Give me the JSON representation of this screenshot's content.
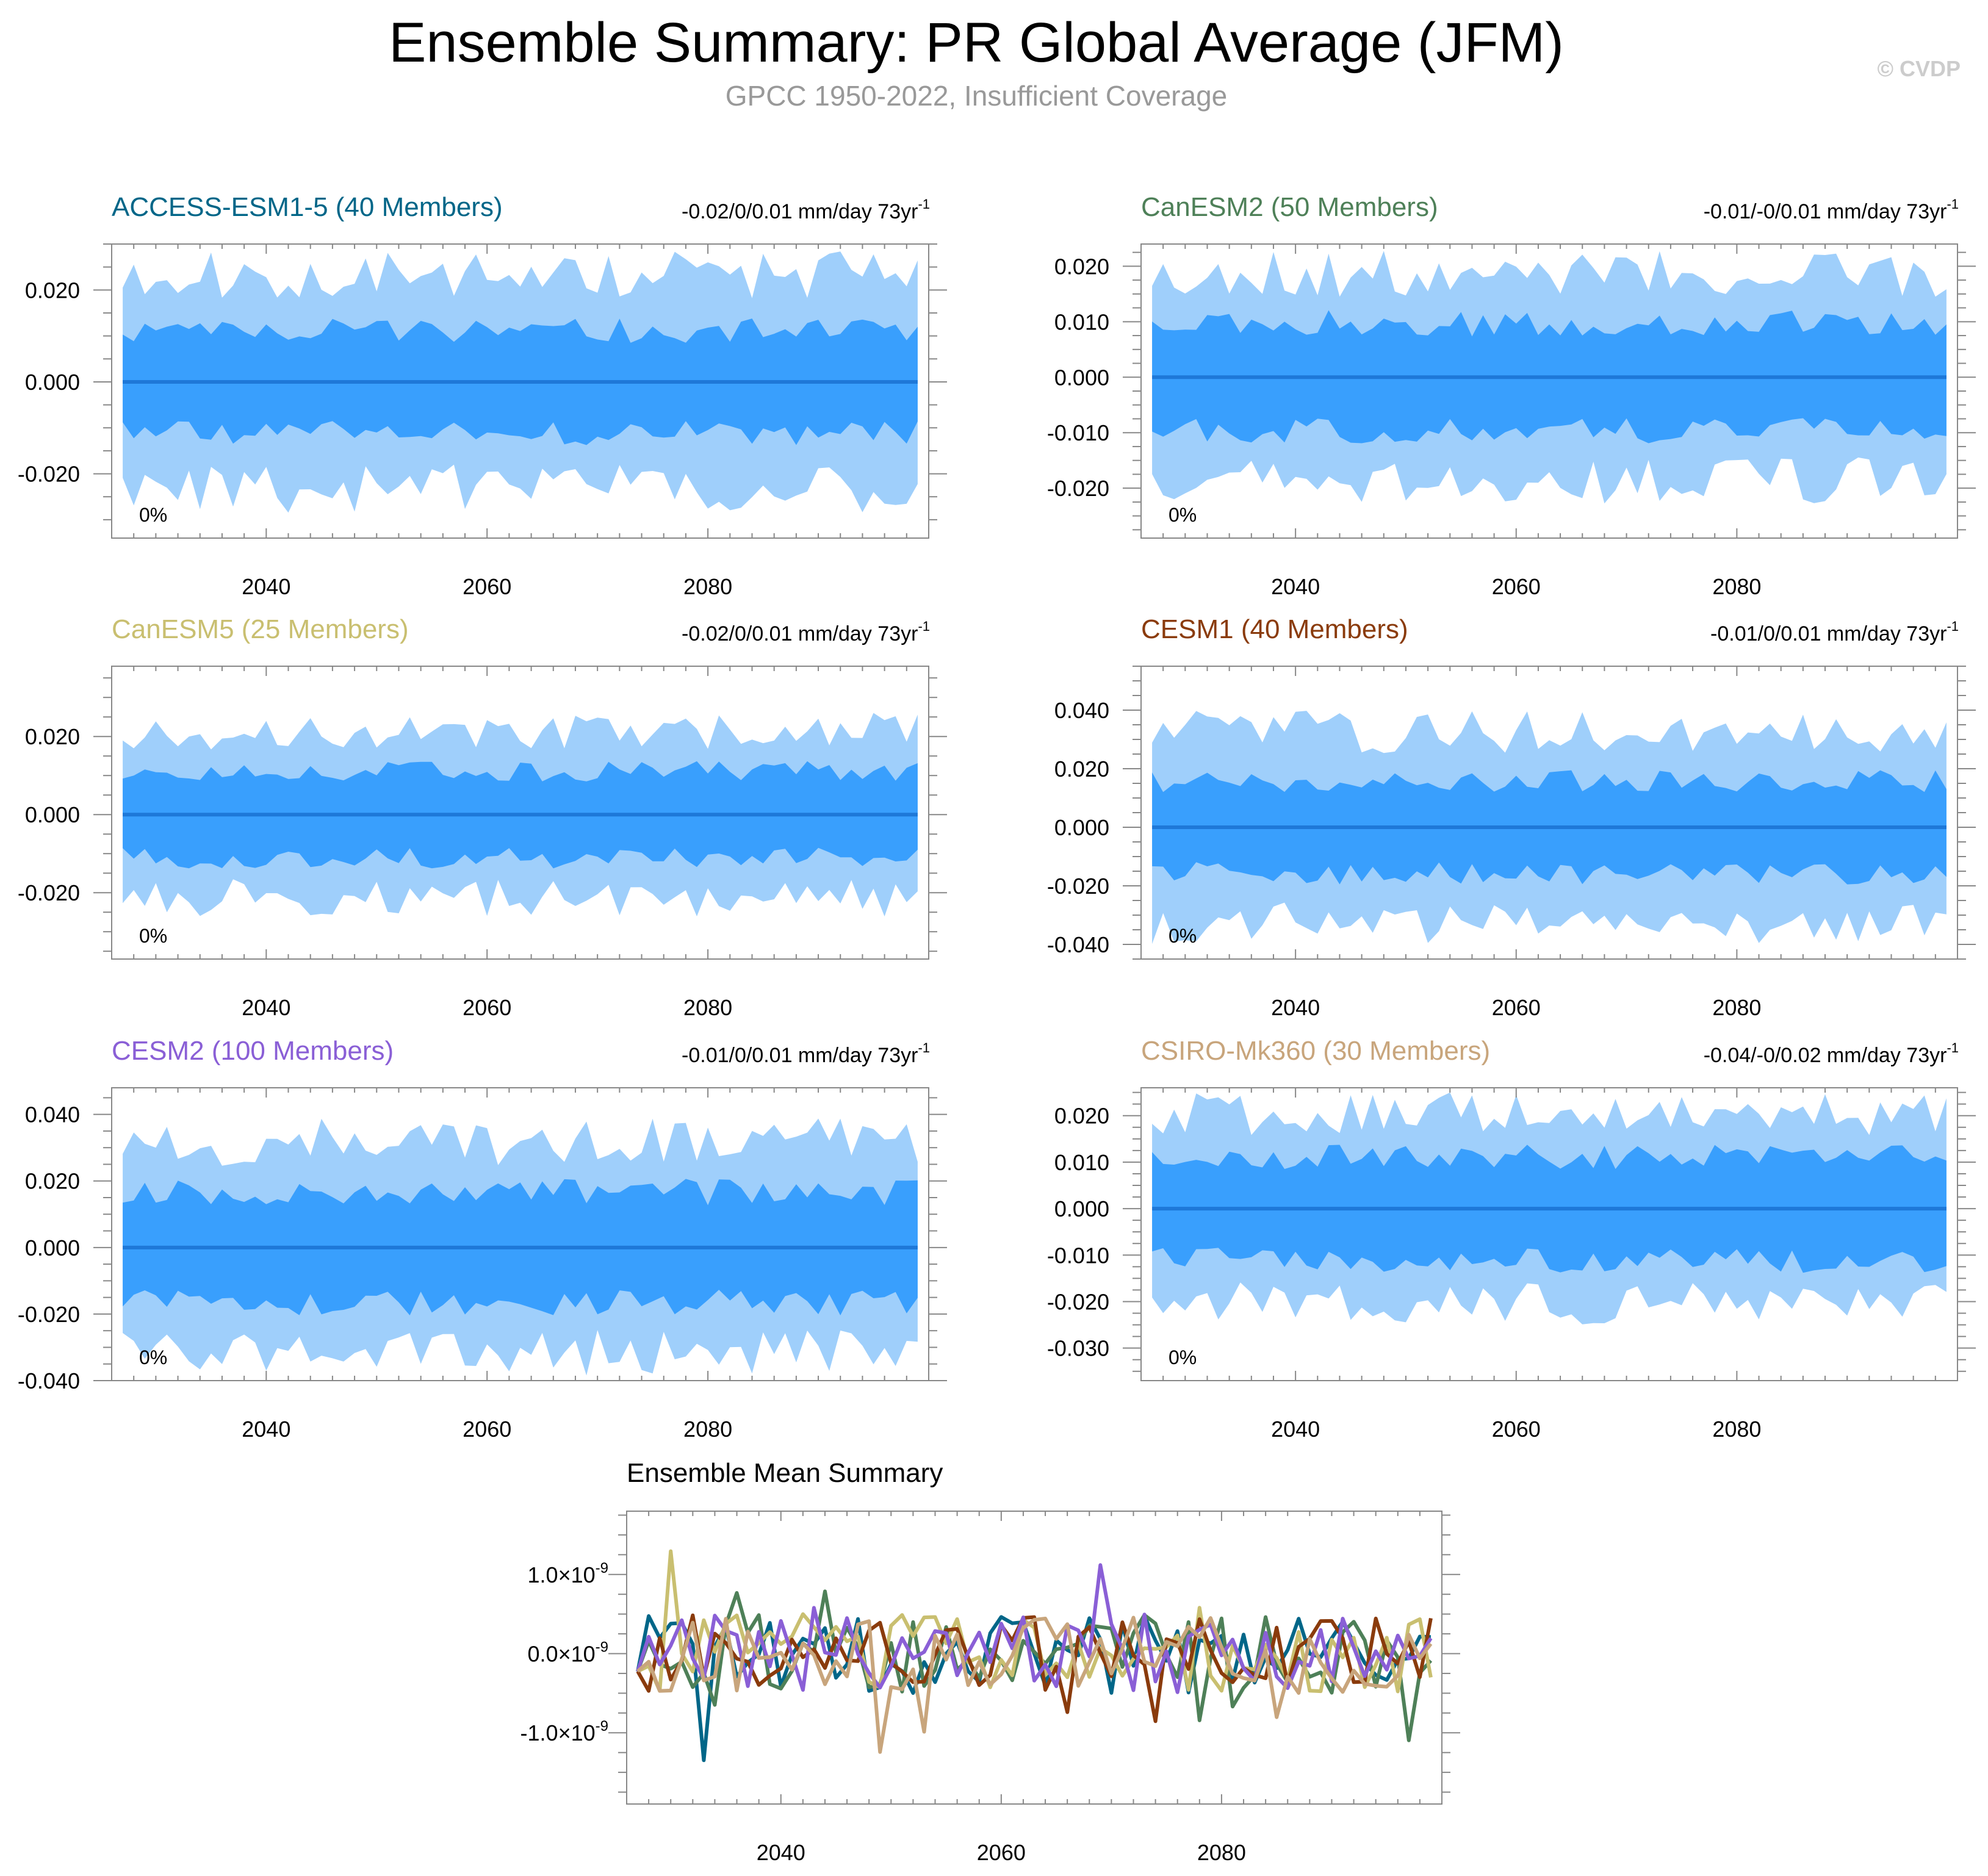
{
  "title": "Ensemble Summary: PR Global Average (JFM)",
  "subtitle": "GPCC 1950-2022, Insufficient Coverage",
  "copyright": "© CVDP",
  "colors": {
    "outer_band": "#9fcffb",
    "inner_band": "#399ffd",
    "mean_line": "#1e78d8",
    "axis": "#000000"
  },
  "chart_data": [
    {
      "type": "area",
      "title": "ACCESS-ESM1-5 (40 Members)",
      "title_color": "#006688",
      "trend": "-0.02/0/0.01 mm/day 73yr",
      "trend_sup": "-1",
      "percent": "0%",
      "xlim": [
        2026,
        2100
      ],
      "ylim": [
        -0.034,
        0.03
      ],
      "yticks": [
        -0.02,
        0.0,
        0.02
      ],
      "ytick_labels": [
        "-0.020",
        "0.000",
        "0.020"
      ],
      "xticks": [
        2040,
        2060,
        2080
      ],
      "xtick_labels": [
        "2040",
        "2060",
        "2080"
      ],
      "x_start": 2027,
      "x_end": 2099,
      "mean": 0.0,
      "outer_amp": 0.025,
      "inner_amp": 0.012,
      "seed": 11
    },
    {
      "type": "area",
      "title": "CanESM2 (50 Members)",
      "title_color": "#4e8058",
      "trend": "-0.01/-0/0.01 mm/day 73yr",
      "trend_sup": "-1",
      "percent": "0%",
      "xlim": [
        2026,
        2100
      ],
      "ylim": [
        -0.029,
        0.024
      ],
      "yticks": [
        -0.02,
        -0.01,
        0.0,
        0.01,
        0.02
      ],
      "ytick_labels": [
        "-0.020",
        "-0.010",
        "0.000",
        "0.010",
        "0.020"
      ],
      "xticks": [
        2040,
        2060,
        2080
      ],
      "xtick_labels": [
        "2040",
        "2060",
        "2080"
      ],
      "x_start": 2027,
      "x_end": 2099,
      "mean": 0.0,
      "outer_amp": 0.02,
      "inner_amp": 0.0105,
      "seed": 23
    },
    {
      "type": "area",
      "title": "CanESM5 (25 Members)",
      "title_color": "#c9bf70",
      "trend": "-0.02/0/0.01 mm/day 73yr",
      "trend_sup": "-1",
      "percent": "0%",
      "xlim": [
        2026,
        2100
      ],
      "ylim": [
        -0.037,
        0.038
      ],
      "yticks": [
        -0.02,
        0.0,
        0.02
      ],
      "ytick_labels": [
        "-0.020",
        "0.000",
        "0.020"
      ],
      "xticks": [
        2040,
        2060,
        2080
      ],
      "xtick_labels": [
        "2040",
        "2060",
        "2080"
      ],
      "x_start": 2027,
      "x_end": 2099,
      "mean": 0.0,
      "outer_amp": 0.023,
      "inner_amp": 0.012,
      "seed": 37
    },
    {
      "type": "area",
      "title": "CESM1 (40 Members)",
      "title_color": "#8a3b0c",
      "trend": "-0.01/0/0.01 mm/day 73yr",
      "trend_sup": "-1",
      "percent": "0%",
      "xlim": [
        2026,
        2100
      ],
      "ylim": [
        -0.045,
        0.055
      ],
      "yticks": [
        -0.04,
        -0.02,
        0.0,
        0.02,
        0.04
      ],
      "ytick_labels": [
        "-0.040",
        "-0.020",
        "0.000",
        "0.020",
        "0.040"
      ],
      "xticks": [
        2040,
        2060,
        2080
      ],
      "xtick_labels": [
        "2040",
        "2060",
        "2080"
      ],
      "x_start": 2027,
      "x_end": 2099,
      "mean": 0.0,
      "outer_amp": 0.035,
      "inner_amp": 0.017,
      "seed": 41
    },
    {
      "type": "area",
      "title": "CESM2 (100 Members)",
      "title_color": "#8a5fd6",
      "trend": "-0.01/0/0.01 mm/day 73yr",
      "trend_sup": "-1",
      "percent": "0%",
      "xlim": [
        2026,
        2100
      ],
      "ylim": [
        -0.04,
        0.048
      ],
      "yticks": [
        -0.04,
        -0.02,
        0.0,
        0.02,
        0.04
      ],
      "ytick_labels": [
        "-0.040",
        "-0.020",
        "0.000",
        "0.020",
        "0.040"
      ],
      "xticks": [
        2040,
        2060,
        2080
      ],
      "xtick_labels": [
        "2040",
        "2060",
        "2080"
      ],
      "x_start": 2027,
      "x_end": 2099,
      "mean": 0.0,
      "outer_amp": 0.034,
      "inner_amp": 0.018,
      "seed": 53
    },
    {
      "type": "area",
      "title": "CSIRO-Mk360 (30 Members)",
      "title_color": "#c8a57c",
      "trend": "-0.04/-0/0.02 mm/day 73yr",
      "trend_sup": "-1",
      "percent": "0%",
      "xlim": [
        2026,
        2100
      ],
      "ylim": [
        -0.037,
        0.026
      ],
      "yticks": [
        -0.03,
        -0.02,
        -0.01,
        0.0,
        0.01,
        0.02
      ],
      "ytick_labels": [
        "-0.030",
        "-0.020",
        "-0.010",
        "0.000",
        "0.010",
        "0.020"
      ],
      "xticks": [
        2040,
        2060,
        2080
      ],
      "xtick_labels": [
        "2040",
        "2060",
        "2080"
      ],
      "x_start": 2027,
      "x_end": 2099,
      "mean": 0.0,
      "outer_amp": 0.022,
      "inner_amp": 0.012,
      "seed": 67
    },
    {
      "type": "line",
      "title": "Ensemble Mean Summary",
      "xlim": [
        2026,
        2100
      ],
      "ylim": [
        -1.9,
        1.8
      ],
      "yticks": [
        -1.0,
        0.0,
        1.0
      ],
      "ytick_labels": [
        "-1.0",
        "0.0",
        "1.0"
      ],
      "ytick_suffix": "×10",
      "ytick_exponent": "-9",
      "xticks": [
        2040,
        2060,
        2080
      ],
      "xtick_labels": [
        "2040",
        "2060",
        "2080"
      ],
      "x_start": 2027,
      "x_end": 2099,
      "series": [
        {
          "name": "ACCESS-ESM1-5",
          "color": "#006688",
          "seed": 101
        },
        {
          "name": "CanESM2",
          "color": "#4e8058",
          "seed": 102
        },
        {
          "name": "CanESM5",
          "color": "#c9bf70",
          "seed": 103
        },
        {
          "name": "CESM1",
          "color": "#8a3b0c",
          "seed": 104
        },
        {
          "name": "CESM2",
          "color": "#8a5fd6",
          "seed": 105
        },
        {
          "name": "CSIRO-Mk360",
          "color": "#c8a57c",
          "seed": 106
        }
      ]
    }
  ]
}
